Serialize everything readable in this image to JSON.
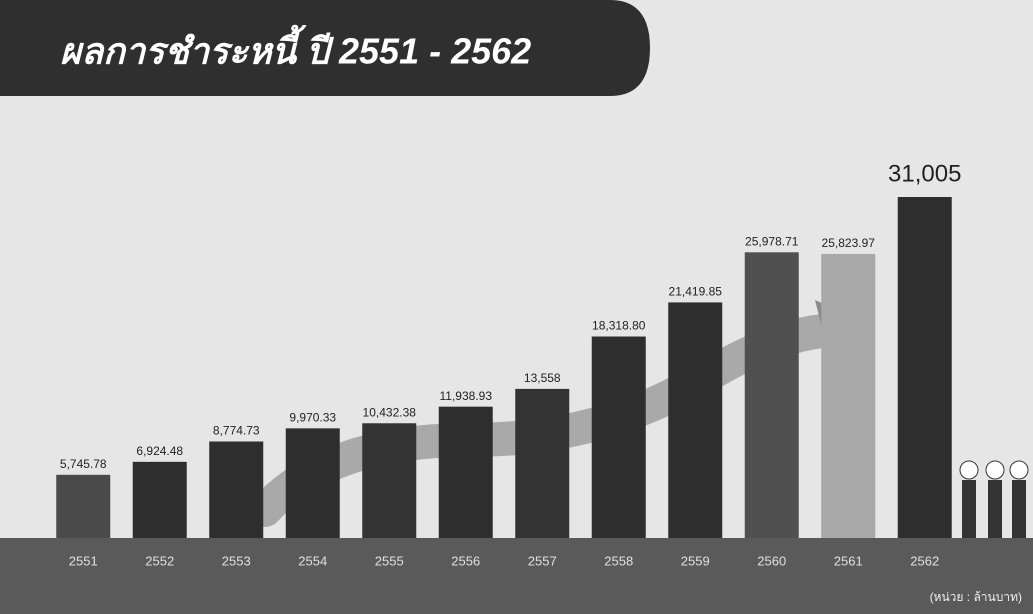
{
  "chart_data": {
    "type": "bar",
    "title": "ผลการชำระหนี้ ปี 2551 - 2562",
    "note": "(หน่วย : ล้านบาท)",
    "categories": [
      "2551",
      "2552",
      "2553",
      "2554",
      "2555",
      "2556",
      "2557",
      "2558",
      "2559",
      "2560",
      "2561",
      "2562"
    ],
    "values": [
      5745.78,
      6924.48,
      8774.73,
      9970.33,
      10432.38,
      11938.93,
      13558,
      18318.8,
      21419.85,
      25978.71,
      25823.97,
      31005
    ],
    "value_labels": [
      "5,745.78",
      "6,924.48",
      "8,774.73",
      "9,970.33",
      "10,432.38",
      "11,938.93",
      "13,558",
      "18,318.80",
      "21,419.85",
      "25,978.71",
      "25,823.97",
      "31,005"
    ],
    "colors": [
      "#4a4a4a",
      "#2e2e2e",
      "#2e2e2e",
      "#2e2e2e",
      "#333333",
      "#2e2e2e",
      "#333333",
      "#2e2e2e",
      "#2e2e2e",
      "#505050",
      "#a8a8a8",
      "#2e2e2e"
    ]
  }
}
